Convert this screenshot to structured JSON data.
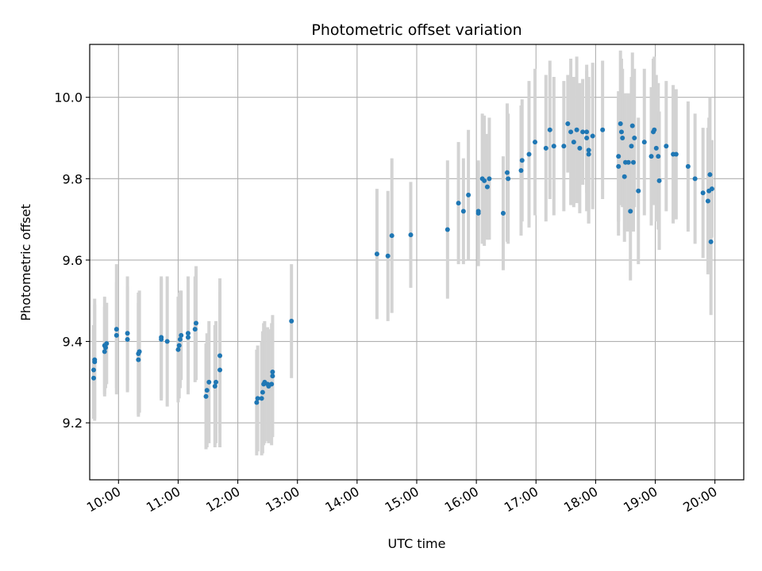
{
  "chart_data": {
    "type": "scatter",
    "title": "Photometric offset variation",
    "xlabel": "UTC time",
    "ylabel": "Photometric offset",
    "xlim": [
      "09:31",
      "20:29"
    ],
    "ylim": [
      9.06,
      10.13
    ],
    "x_ticks": [
      "10:00",
      "11:00",
      "12:00",
      "13:00",
      "14:00",
      "15:00",
      "16:00",
      "17:00",
      "18:00",
      "19:00",
      "20:00"
    ],
    "y_ticks": [
      "9.2",
      "9.4",
      "9.6",
      "9.8",
      "10.0"
    ],
    "y_tick_values": [
      9.2,
      9.4,
      9.6,
      9.8,
      10.0
    ],
    "grid": true,
    "point_color": "#1f77b4",
    "errorbar_color": "#d3d3d3",
    "series": [
      {
        "points": [
          {
            "t": "09:35",
            "y": 9.31,
            "err": 0.1
          },
          {
            "t": "09:35",
            "y": 9.33,
            "err": 0.11
          },
          {
            "t": "09:36",
            "y": 9.35,
            "err": 0.14
          },
          {
            "t": "09:36",
            "y": 9.355,
            "err": 0.15
          },
          {
            "t": "09:46",
            "y": 9.375,
            "err": 0.11
          },
          {
            "t": "09:46",
            "y": 9.39,
            "err": 0.12
          },
          {
            "t": "09:47",
            "y": 9.385,
            "err": 0.1
          },
          {
            "t": "09:48",
            "y": 9.395,
            "err": 0.1
          },
          {
            "t": "09:58",
            "y": 9.415,
            "err": 0.13
          },
          {
            "t": "09:58",
            "y": 9.43,
            "err": 0.16
          },
          {
            "t": "10:09",
            "y": 9.405,
            "err": 0.13
          },
          {
            "t": "10:09",
            "y": 9.42,
            "err": 0.14
          },
          {
            "t": "10:20",
            "y": 9.355,
            "err": 0.14
          },
          {
            "t": "10:20",
            "y": 9.37,
            "err": 0.15
          },
          {
            "t": "10:21",
            "y": 9.375,
            "err": 0.15
          },
          {
            "t": "10:43",
            "y": 9.405,
            "err": 0.15
          },
          {
            "t": "10:43",
            "y": 9.41,
            "err": 0.15
          },
          {
            "t": "10:49",
            "y": 9.4,
            "err": 0.16
          },
          {
            "t": "11:00",
            "y": 9.38,
            "err": 0.13
          },
          {
            "t": "11:01",
            "y": 9.39,
            "err": 0.13
          },
          {
            "t": "11:02",
            "y": 9.405,
            "err": 0.12
          },
          {
            "t": "11:03",
            "y": 9.415,
            "err": 0.11
          },
          {
            "t": "11:10",
            "y": 9.41,
            "err": 0.14
          },
          {
            "t": "11:10",
            "y": 9.42,
            "err": 0.14
          },
          {
            "t": "11:17",
            "y": 9.43,
            "err": 0.13
          },
          {
            "t": "11:18",
            "y": 9.445,
            "err": 0.14
          },
          {
            "t": "11:28",
            "y": 9.265,
            "err": 0.13
          },
          {
            "t": "11:29",
            "y": 9.28,
            "err": 0.14
          },
          {
            "t": "11:31",
            "y": 9.3,
            "err": 0.15
          },
          {
            "t": "11:37",
            "y": 9.29,
            "err": 0.15
          },
          {
            "t": "11:38",
            "y": 9.3,
            "err": 0.15
          },
          {
            "t": "11:42",
            "y": 9.33,
            "err": 0.19
          },
          {
            "t": "11:42",
            "y": 9.365,
            "err": 0.19
          },
          {
            "t": "12:19",
            "y": 9.25,
            "err": 0.13
          },
          {
            "t": "12:20",
            "y": 9.26,
            "err": 0.13
          },
          {
            "t": "12:24",
            "y": 9.26,
            "err": 0.14
          },
          {
            "t": "12:25",
            "y": 9.275,
            "err": 0.15
          },
          {
            "t": "12:26",
            "y": 9.295,
            "err": 0.15
          },
          {
            "t": "12:27",
            "y": 9.3,
            "err": 0.15
          },
          {
            "t": "12:30",
            "y": 9.295,
            "err": 0.14
          },
          {
            "t": "12:31",
            "y": 9.29,
            "err": 0.14
          },
          {
            "t": "12:34",
            "y": 9.295,
            "err": 0.15
          },
          {
            "t": "12:35",
            "y": 9.315,
            "err": 0.15
          },
          {
            "t": "12:35",
            "y": 9.325,
            "err": 0.12
          },
          {
            "t": "12:54",
            "y": 9.45,
            "err": 0.14
          },
          {
            "t": "14:20",
            "y": 9.615,
            "err": 0.16
          },
          {
            "t": "14:31",
            "y": 9.61,
            "err": 0.16
          },
          {
            "t": "14:35",
            "y": 9.66,
            "err": 0.19
          },
          {
            "t": "14:54",
            "y": 9.662,
            "err": 0.13
          },
          {
            "t": "15:31",
            "y": 9.675,
            "err": 0.17
          },
          {
            "t": "15:42",
            "y": 9.74,
            "err": 0.15
          },
          {
            "t": "15:47",
            "y": 9.72,
            "err": 0.13
          },
          {
            "t": "15:52",
            "y": 9.76,
            "err": 0.16
          },
          {
            "t": "16:02",
            "y": 9.715,
            "err": 0.13
          },
          {
            "t": "16:02",
            "y": 9.72,
            "err": 0.12
          },
          {
            "t": "16:06",
            "y": 9.8,
            "err": 0.16
          },
          {
            "t": "16:08",
            "y": 9.795,
            "err": 0.16
          },
          {
            "t": "16:11",
            "y": 9.78,
            "err": 0.13
          },
          {
            "t": "16:13",
            "y": 9.8,
            "err": 0.15
          },
          {
            "t": "16:27",
            "y": 9.715,
            "err": 0.14
          },
          {
            "t": "16:31",
            "y": 9.815,
            "err": 0.17
          },
          {
            "t": "16:32",
            "y": 9.8,
            "err": 0.16
          },
          {
            "t": "16:45",
            "y": 9.82,
            "err": 0.16
          },
          {
            "t": "16:46",
            "y": 9.845,
            "err": 0.15
          },
          {
            "t": "16:53",
            "y": 9.86,
            "err": 0.18
          },
          {
            "t": "16:59",
            "y": 9.89,
            "err": 0.18
          },
          {
            "t": "17:10",
            "y": 9.875,
            "err": 0.18
          },
          {
            "t": "17:14",
            "y": 9.92,
            "err": 0.17
          },
          {
            "t": "17:18",
            "y": 9.88,
            "err": 0.17
          },
          {
            "t": "17:28",
            "y": 9.88,
            "err": 0.16
          },
          {
            "t": "17:32",
            "y": 9.935,
            "err": 0.12
          },
          {
            "t": "17:35",
            "y": 9.915,
            "err": 0.18
          },
          {
            "t": "17:38",
            "y": 9.89,
            "err": 0.16
          },
          {
            "t": "17:41",
            "y": 9.92,
            "err": 0.18
          },
          {
            "t": "17:44",
            "y": 9.875,
            "err": 0.16
          },
          {
            "t": "17:47",
            "y": 9.915,
            "err": 0.13
          },
          {
            "t": "17:51",
            "y": 9.9,
            "err": 0.18
          },
          {
            "t": "17:51",
            "y": 9.915,
            "err": 0.15
          },
          {
            "t": "17:53",
            "y": 9.87,
            "err": 0.18
          },
          {
            "t": "17:53",
            "y": 9.86,
            "err": 0.17
          },
          {
            "t": "17:57",
            "y": 9.905,
            "err": 0.18
          },
          {
            "t": "18:07",
            "y": 9.92,
            "err": 0.17
          },
          {
            "t": "18:23",
            "y": 9.83,
            "err": 0.17
          },
          {
            "t": "18:23",
            "y": 9.855,
            "err": 0.16
          },
          {
            "t": "18:25",
            "y": 9.935,
            "err": 0.18
          },
          {
            "t": "18:26",
            "y": 9.915,
            "err": 0.18
          },
          {
            "t": "18:27",
            "y": 9.9,
            "err": 0.17
          },
          {
            "t": "18:29",
            "y": 9.805,
            "err": 0.16
          },
          {
            "t": "18:30",
            "y": 9.84,
            "err": 0.17
          },
          {
            "t": "18:33",
            "y": 9.84,
            "err": 0.17
          },
          {
            "t": "18:35",
            "y": 9.72,
            "err": 0.17
          },
          {
            "t": "18:36",
            "y": 9.88,
            "err": 0.17
          },
          {
            "t": "18:37",
            "y": 9.93,
            "err": 0.18
          },
          {
            "t": "18:38",
            "y": 9.84,
            "err": 0.17
          },
          {
            "t": "18:39",
            "y": 9.9,
            "err": 0.17
          },
          {
            "t": "18:43",
            "y": 9.77,
            "err": 0.18
          },
          {
            "t": "18:49",
            "y": 9.89,
            "err": 0.18
          },
          {
            "t": "18:56",
            "y": 9.855,
            "err": 0.17
          },
          {
            "t": "18:58",
            "y": 9.915,
            "err": 0.18
          },
          {
            "t": "18:59",
            "y": 9.92,
            "err": 0.18
          },
          {
            "t": "19:01",
            "y": 9.875,
            "err": 0.18
          },
          {
            "t": "19:03",
            "y": 9.855,
            "err": 0.18
          },
          {
            "t": "19:04",
            "y": 9.795,
            "err": 0.17
          },
          {
            "t": "19:11",
            "y": 9.88,
            "err": 0.16
          },
          {
            "t": "19:18",
            "y": 9.86,
            "err": 0.17
          },
          {
            "t": "19:21",
            "y": 9.86,
            "err": 0.16
          },
          {
            "t": "19:33",
            "y": 9.83,
            "err": 0.16
          },
          {
            "t": "19:40",
            "y": 9.8,
            "err": 0.16
          },
          {
            "t": "19:48",
            "y": 9.765,
            "err": 0.16
          },
          {
            "t": "19:53",
            "y": 9.745,
            "err": 0.18
          },
          {
            "t": "19:54",
            "y": 9.77,
            "err": 0.18
          },
          {
            "t": "19:55",
            "y": 9.81,
            "err": 0.19
          },
          {
            "t": "19:56",
            "y": 9.645,
            "err": 0.18
          },
          {
            "t": "19:57",
            "y": 9.775,
            "err": 0.12
          }
        ]
      }
    ]
  }
}
